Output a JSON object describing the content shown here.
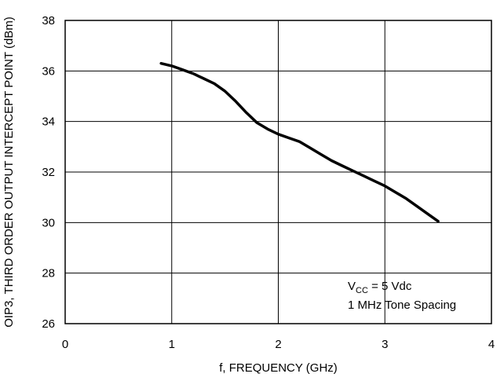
{
  "chart_data": {
    "type": "line",
    "title": "",
    "xlabel": "f, FREQUENCY (GHz)",
    "ylabel": "OIP3, THIRD ORDER OUTPUT INTERCEPT POINT (dBm)",
    "xlim": [
      0,
      4
    ],
    "ylim": [
      26,
      38
    ],
    "x_ticks": [
      0,
      1,
      2,
      3,
      4
    ],
    "y_ticks": [
      26,
      28,
      30,
      32,
      34,
      36,
      38
    ],
    "grid": true,
    "series": [
      {
        "x": [
          0.9,
          1.0,
          1.1,
          1.2,
          1.3,
          1.4,
          1.5,
          1.6,
          1.7,
          1.8,
          1.9,
          2.0,
          2.1,
          2.2,
          2.3,
          2.4,
          2.5,
          2.6,
          2.7,
          2.8,
          2.9,
          3.0,
          3.1,
          3.2,
          3.3,
          3.4,
          3.5
        ],
        "y": [
          36.3,
          36.2,
          36.05,
          35.9,
          35.7,
          35.5,
          35.2,
          34.8,
          34.35,
          33.95,
          33.7,
          33.5,
          33.35,
          33.2,
          32.95,
          32.7,
          32.45,
          32.25,
          32.05,
          31.85,
          31.65,
          31.45,
          31.2,
          30.95,
          30.65,
          30.35,
          30.05
        ]
      }
    ],
    "annotation": {
      "line1_main": "V",
      "line1_sub": "CC",
      "line1_rest": " = 5 Vdc",
      "line2": "1 MHz Tone Spacing"
    }
  }
}
